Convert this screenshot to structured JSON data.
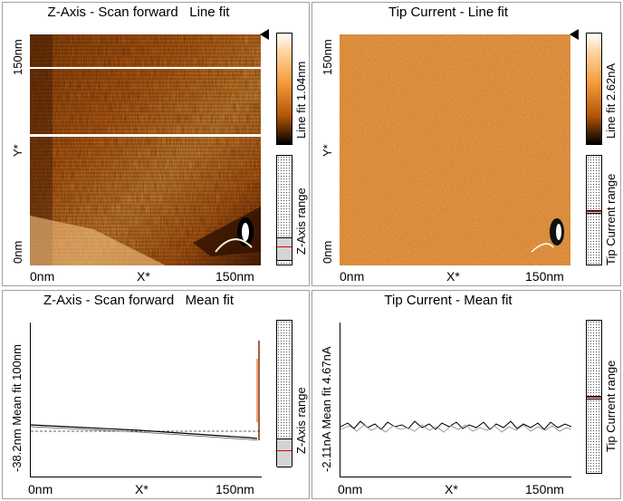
{
  "panels": {
    "z_line": {
      "title": "Z-Axis - Scan forward   Line fit",
      "y_top": "150nm",
      "y_mid": "Y*",
      "y_bottom": "0nm",
      "x_left": "0nm",
      "x_mid": "X*",
      "x_right": "150nm",
      "colorbar_label": "Line fit 1.04nm",
      "range_label": "Z-Axis range"
    },
    "tip_line": {
      "title": "Tip Current - Line fit",
      "y_top": "150nm",
      "y_mid": "Y*",
      "y_bottom": "0nm",
      "x_left": "0nm",
      "x_mid": "X*",
      "x_right": "150nm",
      "colorbar_label": "Line fit 2.62nA",
      "range_label": "Tip Current range"
    },
    "z_mean": {
      "title": "Z-Axis - Scan forward   Mean fit",
      "y_label": "-38.2nm  Mean fit   100nm",
      "x_left": "0nm",
      "x_mid": "X*",
      "x_right": "150nm",
      "range_label": "Z-Axis range"
    },
    "tip_mean": {
      "title": "Tip Current - Mean fit",
      "y_label": "-2.11nA  Mean fit   4.67nA",
      "x_left": "0nm",
      "x_mid": "X*",
      "x_right": "150nm",
      "range_label": "Tip Current range"
    }
  },
  "colors": {
    "orange_dark": "#2a1200",
    "orange_mid": "#d97a1c",
    "orange_light": "#ffe3c0",
    "range_marker": "#e00000"
  },
  "icons": [
    "pointer-triangle-icon"
  ]
}
